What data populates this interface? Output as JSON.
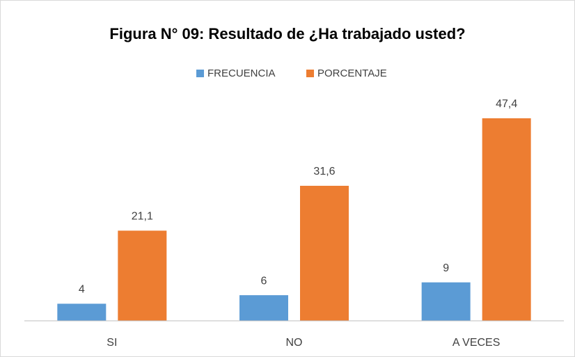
{
  "chart_data": {
    "type": "bar",
    "title": "Figura N° 09:  Resultado de ¿Ha trabajado usted?",
    "categories": [
      "SI",
      "NO",
      "A VECES"
    ],
    "series": [
      {
        "name": "FRECUENCIA",
        "color": "#5b9bd5",
        "values": [
          4,
          6,
          9
        ]
      },
      {
        "name": "PORCENTAJE",
        "color": "#ed7d31",
        "values": [
          21.1,
          31.6,
          47.4
        ],
        "value_labels": [
          "21,1",
          "31,6",
          "47,4"
        ]
      }
    ],
    "ylim": [
      0,
      50
    ],
    "legend": "top",
    "grid": false
  }
}
